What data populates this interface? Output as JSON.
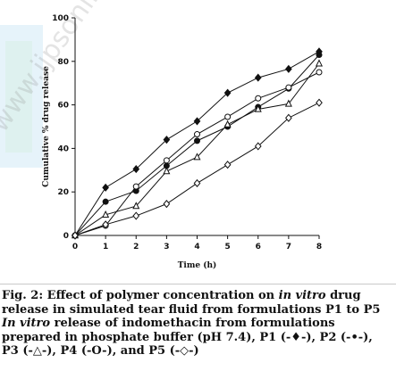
{
  "watermark": {
    "text": "www.ijpsonline.com / ijp.sdknow.com"
  },
  "chart_data": {
    "type": "line",
    "xlabel": "Time (h)",
    "ylabel": "Cumulative % drug release",
    "xlim": [
      0,
      8
    ],
    "ylim": [
      0,
      100
    ],
    "xticks": [
      "0",
      "1",
      "2",
      "3",
      "4",
      "5",
      "6",
      "7",
      "8"
    ],
    "yticks": [
      "0",
      "20",
      "40",
      "60",
      "80",
      "100"
    ],
    "grid": false,
    "legend": "none",
    "x": [
      0,
      1,
      2,
      3,
      4,
      5,
      6,
      7,
      8
    ],
    "series": [
      {
        "name": "P1",
        "marker": "diamond-filled",
        "values": [
          0,
          22,
          30.5,
          44,
          52.5,
          65.5,
          72.5,
          76.5,
          84.5
        ]
      },
      {
        "name": "P2",
        "marker": "circle-filled",
        "values": [
          0,
          15.5,
          20.5,
          32,
          43.5,
          50,
          59,
          67.5,
          83
        ]
      },
      {
        "name": "P3",
        "marker": "triangle-open",
        "values": [
          0,
          9.5,
          13.5,
          29.5,
          36,
          51,
          58,
          60.5,
          79
        ]
      },
      {
        "name": "P4",
        "marker": "circle-open",
        "values": [
          0,
          4.5,
          22.5,
          34.5,
          46.5,
          54.5,
          63,
          68,
          75
        ]
      },
      {
        "name": "P5",
        "marker": "diamond-open",
        "values": [
          0,
          5,
          9,
          14.5,
          24,
          32.5,
          41,
          54,
          61
        ]
      }
    ]
  },
  "caption": {
    "line1_a": "Fig. 2: Effect of polymer concentration on ",
    "line1_em": "in vitro",
    "line1_b": " drug release in simulated tear fluid from formulations P1 to P5",
    "line2_em": "In vitro",
    "line2_b": " release of indomethacin from formulations prepared in phosphate buffer (pH 7.4), P1 (-♦-), P2 (-•-), P3 (-△-), P4 (-O-), and P5 (-◇-)"
  }
}
